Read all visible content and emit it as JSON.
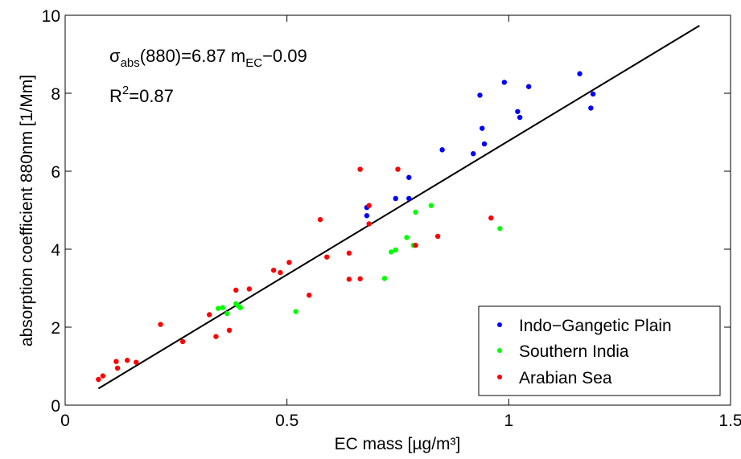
{
  "chart_data": {
    "type": "scatter",
    "xlabel": "EC mass [µg/m³]",
    "ylabel": "absorption coefficient 880nm [1/Mm]",
    "xlim": [
      0,
      1.5
    ],
    "ylim": [
      0,
      10
    ],
    "xticks": [
      0,
      0.5,
      1,
      1.5
    ],
    "xtick_labels": [
      "0",
      "0.5",
      "1",
      "1.5"
    ],
    "yticks": [
      0,
      2,
      4,
      6,
      8,
      10
    ],
    "ytick_labels": [
      "0",
      "2",
      "4",
      "6",
      "8",
      "10"
    ],
    "grid": false,
    "legend_position": "bottom-right",
    "annotations": {
      "eq_sigma": "σ",
      "eq_sigma_sub": "abs",
      "eq_mid": "(880)=6.87 m",
      "eq_m_sub": "EC",
      "eq_tail": "−0.09",
      "r2_base": "R",
      "r2_sup": "2",
      "r2_tail": "=0.87"
    },
    "fit_line": {
      "slope": 6.87,
      "intercept": -0.09,
      "x_range": [
        0.075,
        1.43
      ],
      "color": "#000000"
    },
    "series": [
      {
        "name": "Indo−Gangetic Plain",
        "color": "#0000ff",
        "points": [
          [
            0.68,
            5.07
          ],
          [
            0.68,
            4.86
          ],
          [
            0.745,
            5.3
          ],
          [
            0.775,
            5.3
          ],
          [
            0.775,
            5.84
          ],
          [
            0.85,
            6.55
          ],
          [
            0.92,
            6.45
          ],
          [
            0.935,
            7.95
          ],
          [
            0.94,
            7.1
          ],
          [
            0.945,
            6.7
          ],
          [
            0.99,
            8.28
          ],
          [
            1.02,
            7.53
          ],
          [
            1.025,
            7.38
          ],
          [
            1.045,
            8.17
          ],
          [
            1.16,
            8.5
          ],
          [
            1.185,
            7.62
          ],
          [
            1.19,
            7.98
          ]
        ]
      },
      {
        "name": "Southern India",
        "color": "#00ff00",
        "points": [
          [
            0.345,
            2.48
          ],
          [
            0.355,
            2.5
          ],
          [
            0.365,
            2.35
          ],
          [
            0.385,
            2.6
          ],
          [
            0.39,
            2.55
          ],
          [
            0.395,
            2.5
          ],
          [
            0.52,
            2.4
          ],
          [
            0.72,
            3.25
          ],
          [
            0.735,
            3.93
          ],
          [
            0.745,
            3.98
          ],
          [
            0.77,
            4.3
          ],
          [
            0.785,
            4.1
          ],
          [
            0.79,
            4.95
          ],
          [
            0.825,
            5.12
          ],
          [
            0.98,
            4.53
          ]
        ]
      },
      {
        "name": "Arabian Sea",
        "color": "#ff0000",
        "points": [
          [
            0.075,
            0.66
          ],
          [
            0.085,
            0.75
          ],
          [
            0.115,
            1.12
          ],
          [
            0.118,
            0.95
          ],
          [
            0.14,
            1.15
          ],
          [
            0.16,
            1.1
          ],
          [
            0.215,
            2.07
          ],
          [
            0.265,
            1.63
          ],
          [
            0.325,
            2.32
          ],
          [
            0.34,
            1.76
          ],
          [
            0.37,
            1.92
          ],
          [
            0.385,
            2.95
          ],
          [
            0.415,
            2.98
          ],
          [
            0.47,
            3.46
          ],
          [
            0.485,
            3.4
          ],
          [
            0.505,
            3.66
          ],
          [
            0.55,
            2.82
          ],
          [
            0.575,
            4.76
          ],
          [
            0.59,
            3.8
          ],
          [
            0.64,
            3.9
          ],
          [
            0.64,
            3.23
          ],
          [
            0.665,
            3.24
          ],
          [
            0.665,
            6.05
          ],
          [
            0.685,
            5.12
          ],
          [
            0.685,
            4.65
          ],
          [
            0.75,
            6.05
          ],
          [
            0.79,
            4.1
          ],
          [
            0.84,
            4.33
          ],
          [
            0.96,
            4.8
          ]
        ]
      }
    ]
  }
}
